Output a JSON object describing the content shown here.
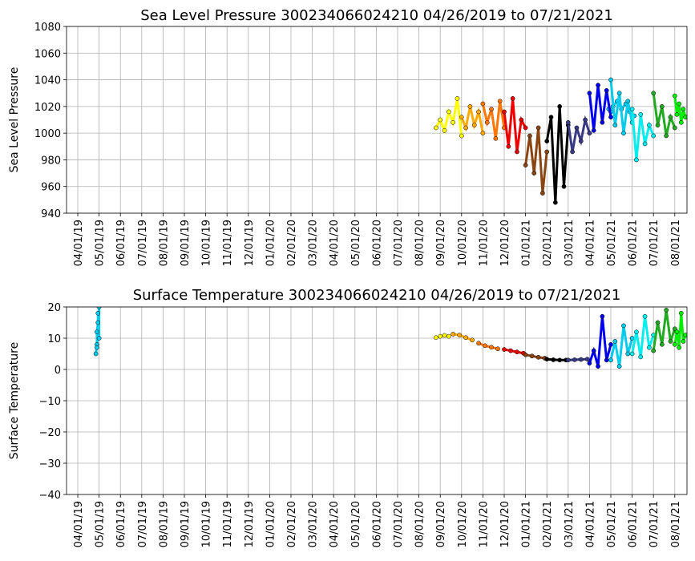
{
  "chart_data": [
    {
      "type": "scatter",
      "title": "Sea Level Pressure 300234066024210  04/26/2019 to 07/21/2021",
      "xlabel": "",
      "ylabel": "Sea Level Pressure",
      "ylim": [
        940,
        1080
      ],
      "yticks": [
        940,
        960,
        980,
        1000,
        1020,
        1040,
        1060,
        1080
      ],
      "xtick_labels": [
        "04/01/19",
        "05/01/19",
        "06/01/19",
        "07/01/19",
        "08/01/19",
        "09/01/19",
        "10/01/19",
        "11/01/19",
        "12/01/19",
        "01/01/20",
        "02/01/20",
        "03/01/20",
        "04/01/20",
        "05/01/20",
        "06/01/20",
        "07/01/20",
        "08/01/20",
        "09/01/20",
        "10/01/20",
        "11/01/20",
        "12/01/20",
        "01/01/21",
        "02/01/21",
        "03/01/21",
        "04/01/21",
        "05/01/21",
        "06/01/21",
        "07/01/21",
        "08/01/21"
      ],
      "grid": true,
      "series": [
        {
          "color": "#00ccee",
          "x": [
            24.9,
            25.0,
            25.1,
            25.3,
            25.5,
            25.7,
            25.9,
            26.1
          ],
          "y": [
            1018,
            1016,
            1020,
            1024,
            1018,
            1022,
            1016,
            1013
          ]
        },
        {
          "color": "#ffff00",
          "x": [
            16.8,
            17.0,
            17.2,
            17.4,
            17.6,
            17.8,
            18.0
          ],
          "y": [
            1004,
            1010,
            1002,
            1016,
            1008,
            1026,
            998
          ]
        },
        {
          "color": "#ffaa00",
          "x": [
            18.0,
            18.2,
            18.4,
            18.6,
            18.8,
            19.0
          ],
          "y": [
            1012,
            1004,
            1020,
            1006,
            1016,
            1000
          ]
        },
        {
          "color": "#ff7700",
          "x": [
            19.0,
            19.2,
            19.4,
            19.6,
            19.8,
            20.0
          ],
          "y": [
            1022,
            1008,
            1018,
            996,
            1024,
            1004
          ]
        },
        {
          "color": "#ee0000",
          "x": [
            20.0,
            20.2,
            20.4,
            20.6,
            20.8,
            21.0
          ],
          "y": [
            1016,
            990,
            1026,
            986,
            1010,
            1004
          ]
        },
        {
          "color": "#8b4513",
          "x": [
            21.0,
            21.2,
            21.4,
            21.6,
            21.8,
            22.0
          ],
          "y": [
            976,
            998,
            970,
            1004,
            955,
            986
          ]
        },
        {
          "color": "#000000",
          "x": [
            22.0,
            22.2,
            22.4,
            22.6,
            22.8,
            23.0
          ],
          "y": [
            994,
            1012,
            948,
            1020,
            960,
            1006
          ]
        },
        {
          "color": "#3a3a85",
          "x": [
            23.0,
            23.2,
            23.4,
            23.6,
            23.8,
            24.0
          ],
          "y": [
            1008,
            986,
            1004,
            994,
            1010,
            1000
          ]
        },
        {
          "color": "#0000ee",
          "x": [
            24.0,
            24.2,
            24.4,
            24.6,
            24.8,
            25.0
          ],
          "y": [
            1030,
            1002,
            1036,
            1008,
            1032,
            1012
          ]
        },
        {
          "color": "#00ccee",
          "x": [
            25.0,
            25.2,
            25.4,
            25.6,
            25.8,
            26.0
          ],
          "y": [
            1040,
            1006,
            1030,
            1000,
            1024,
            1008
          ]
        },
        {
          "color": "#00eeee",
          "x": [
            26.0,
            26.2,
            26.4,
            26.6,
            26.8,
            27.0
          ],
          "y": [
            1018,
            980,
            1014,
            992,
            1006,
            998
          ]
        },
        {
          "color": "#22aa22",
          "x": [
            27.0,
            27.2,
            27.4,
            27.6,
            27.8,
            28.0
          ],
          "y": [
            1030,
            1006,
            1020,
            998,
            1012,
            1004
          ]
        },
        {
          "color": "#00ee00",
          "x": [
            28.0,
            28.1,
            28.2,
            28.3,
            28.4,
            28.5
          ],
          "y": [
            1028,
            1014,
            1022,
            1008,
            1018,
            1012
          ]
        }
      ]
    },
    {
      "type": "scatter",
      "title": "Surface Temperature 300234066024210  04/26/2019 to 07/21/2021",
      "xlabel": "",
      "ylabel": "Surface Temperature",
      "ylim": [
        -40,
        20
      ],
      "yticks": [
        -40,
        -30,
        -20,
        -10,
        0,
        10,
        20
      ],
      "xtick_labels": [
        "04/01/19",
        "05/01/19",
        "06/01/19",
        "07/01/19",
        "08/01/19",
        "09/01/19",
        "10/01/19",
        "11/01/19",
        "12/01/19",
        "01/01/20",
        "02/01/20",
        "03/01/20",
        "04/01/20",
        "05/01/20",
        "06/01/20",
        "07/01/20",
        "08/01/20",
        "09/01/20",
        "10/01/20",
        "11/01/20",
        "12/01/20",
        "01/01/21",
        "02/01/21",
        "03/01/21",
        "04/01/21",
        "05/01/21",
        "06/01/21",
        "07/01/21",
        "08/01/21"
      ],
      "grid": true,
      "series": [
        {
          "color": "#00ccee",
          "x": [
            0.85,
            0.9,
            0.9,
            0.95,
            0.95,
            1.0,
            1.0,
            0.9
          ],
          "y": [
            5,
            8,
            12,
            15,
            18,
            10,
            20,
            7
          ]
        },
        {
          "color": "#ffff00",
          "x": [
            16.8,
            17.0,
            17.2,
            17.4
          ],
          "y": [
            10.2,
            10.6,
            10.9,
            10.6
          ]
        },
        {
          "color": "#ffaa00",
          "x": [
            17.6,
            17.9,
            18.2,
            18.5
          ],
          "y": [
            11.3,
            11.0,
            10.2,
            9.4
          ]
        },
        {
          "color": "#ff7700",
          "x": [
            18.8,
            19.1,
            19.4,
            19.7
          ],
          "y": [
            8.4,
            7.6,
            7.1,
            6.6
          ]
        },
        {
          "color": "#ee0000",
          "x": [
            20.0,
            20.3,
            20.6,
            20.9
          ],
          "y": [
            6.4,
            6.0,
            5.6,
            5.2
          ]
        },
        {
          "color": "#8b4513",
          "x": [
            21.0,
            21.3,
            21.6,
            21.9
          ],
          "y": [
            4.7,
            4.3,
            3.9,
            3.6
          ]
        },
        {
          "color": "#000000",
          "x": [
            22.0,
            22.3,
            22.6,
            22.9
          ],
          "y": [
            3.3,
            3.1,
            3.0,
            3.0
          ]
        },
        {
          "color": "#3a3a85",
          "x": [
            23.0,
            23.3,
            23.6,
            23.9
          ],
          "y": [
            3.0,
            3.1,
            3.2,
            3.3
          ]
        },
        {
          "color": "#0000ee",
          "x": [
            24.0,
            24.2,
            24.4,
            24.6,
            24.8,
            25.0
          ],
          "y": [
            2,
            6,
            1,
            17,
            3,
            8
          ]
        },
        {
          "color": "#00ccee",
          "x": [
            25.0,
            25.2,
            25.4,
            25.6,
            25.8,
            26.0
          ],
          "y": [
            3,
            9,
            1,
            14,
            5,
            10
          ]
        },
        {
          "color": "#00eeee",
          "x": [
            26.0,
            26.2,
            26.4,
            26.6,
            26.8,
            27.0
          ],
          "y": [
            5,
            12,
            4,
            17,
            7,
            11
          ]
        },
        {
          "color": "#22aa22",
          "x": [
            27.0,
            27.2,
            27.4,
            27.6,
            27.8,
            28.0
          ],
          "y": [
            6,
            15,
            8,
            19,
            9,
            13
          ]
        },
        {
          "color": "#00ee00",
          "x": [
            28.0,
            28.1,
            28.2,
            28.3,
            28.4,
            28.5
          ],
          "y": [
            8,
            12,
            7,
            18,
            9,
            11
          ]
        }
      ]
    }
  ]
}
